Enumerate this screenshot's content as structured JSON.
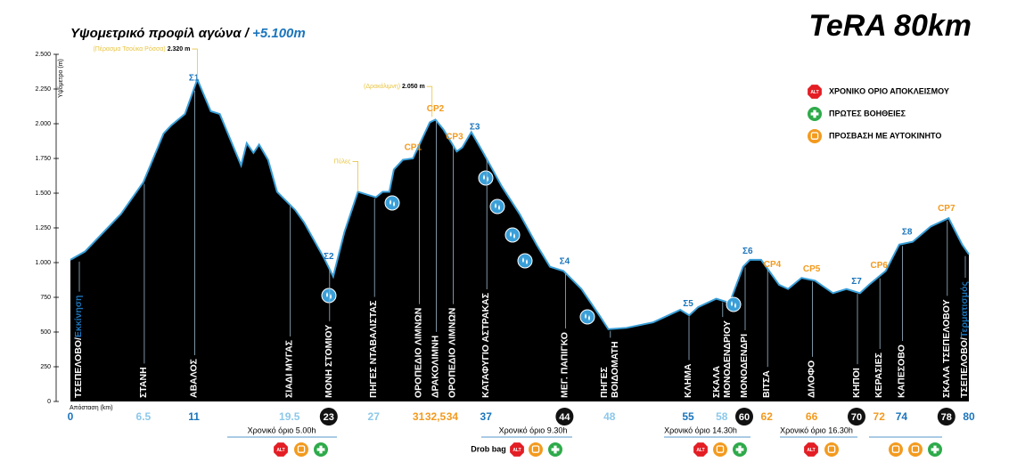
{
  "chart_data": {
    "type": "area",
    "title": "Υψομετρικό προφίλ αγώνα / ",
    "subtitle": "+5.100m",
    "brand": "TeRA 80km",
    "ylabel": "Υψόμετρο (m)",
    "xlabel": "Απόσταση (km)",
    "color": "#000000",
    "line_color": "#3a9fd8",
    "xlim": [
      0,
      80
    ],
    "ylim": [
      0,
      2500
    ],
    "yticks": [
      0,
      250,
      500,
      750,
      {
        "value": 1000,
        "label": "1.000"
      },
      {
        "value": 1250,
        "label": "1.250"
      },
      {
        "value": 1500,
        "label": "1.500"
      },
      {
        "value": 1750,
        "label": "1.750"
      },
      {
        "value": 2000,
        "label": "2.000"
      },
      {
        "value": 2250,
        "label": "2.250"
      },
      {
        "value": 2500,
        "label": "2.500"
      }
    ],
    "x": [
      0,
      1.3,
      4.5,
      6.5,
      8.3,
      9.0,
      10.2,
      11.3,
      12.5,
      13.3,
      15.2,
      15.7,
      16.3,
      16.8,
      17.6,
      18.4,
      20.0,
      20.8,
      22.6,
      23.4,
      24.4,
      25.6,
      27.2,
      27.8,
      28.4,
      28.8,
      29.6,
      30.5,
      32.0,
      32.5,
      33.2,
      34.4,
      34.9,
      35.7,
      36.7,
      38.4,
      40.0,
      41.5,
      42.7,
      43.9,
      45.5,
      47.1,
      47.9,
      49.5,
      51.9,
      54.3,
      55.1,
      55.9,
      57.5,
      58.7,
      59.9,
      60.5,
      61.5,
      63.1,
      63.9,
      65.1,
      66.3,
      67.9,
      69.1,
      70.3,
      71.1,
      72.6,
      73.8,
      75.0,
      76.6,
      78.2,
      79.4,
      80
    ],
    "values": [
      1020,
      1080,
      1350,
      1580,
      1930,
      1990,
      2070,
      2320,
      2090,
      2070,
      1700,
      1860,
      1790,
      1850,
      1740,
      1510,
      1380,
      1290,
      1030,
      900,
      1220,
      1510,
      1470,
      1510,
      1510,
      1670,
      1740,
      1750,
      2010,
      2030,
      1960,
      1800,
      1830,
      1940,
      1800,
      1550,
      1350,
      1130,
      970,
      940,
      810,
      620,
      520,
      530,
      570,
      660,
      620,
      680,
      740,
      710,
      970,
      1020,
      1020,
      840,
      810,
      890,
      870,
      780,
      810,
      780,
      840,
      940,
      1130,
      1150,
      1260,
      1320,
      1130,
      1060
    ],
    "stations": [
      {
        "name": [
          "ΤΣΕΠΕΛΟΒΟ/"
        ],
        "note": "Εκκίνηση",
        "km": 0,
        "color": "#1b75bc"
      },
      {
        "name": [
          "ΣΤΑΝΗ"
        ],
        "km": 6.5,
        "color": "#8cc8ea"
      },
      {
        "name": [
          "ΑΒΑΛΟΣ"
        ],
        "km": 11,
        "color": "#1b75bc"
      },
      {
        "name": [
          "ΣΙΑΔΙ ΜΥΓΑΣ"
        ],
        "km": 19.5,
        "color": "#8cc8ea"
      },
      {
        "name": [
          "ΜΟΝΗ ΣΤΟΜΙΟΥ"
        ],
        "km": 23,
        "color": "#111111",
        "style": "circle"
      },
      {
        "name": [
          "ΠΗΓΕΣ ΝΤΑΒΑΛΙΣΤΑΣ"
        ],
        "km": 27,
        "color": "#8cc8ea"
      },
      {
        "name": [
          "ΟΡΟΠΕΔΙΟ ΛΙΜΝΩΝ"
        ],
        "km": 31,
        "color": "#f39a1e"
      },
      {
        "name": [
          "ΔΡΑΚΟΛΙΜΝΗ"
        ],
        "km": {
          "value": 32.5,
          "label": "32,5"
        },
        "color": "#f39a1e"
      },
      {
        "name": [
          "ΟΡΟΠΕΔΙΟ ΛΙΜΝΩΝ"
        ],
        "km": 34,
        "color": "#f39a1e"
      },
      {
        "name": [
          "ΚΑΤΑΦΥΓΙΟ ΑΣΤΡΑΚΑΣ"
        ],
        "km": 37,
        "color": "#1b75bc"
      },
      {
        "name": [
          "ΜΕΓ. ΠΑΠΙΓΚΟ"
        ],
        "km": 44,
        "color": "#111111",
        "style": "circle"
      },
      {
        "name": [
          "ΠΗΓΕΣ",
          "ΒΟΙΔΟΜΑΤΗ"
        ],
        "km": 48,
        "color": "#8cc8ea"
      },
      {
        "name": [
          "ΚΛΗΜΑ"
        ],
        "km": 55,
        "color": "#1b75bc"
      },
      {
        "name": [
          "ΣΚΑΛΑ",
          "ΜΟΝΟΔΕΝΔΡΙΟΥ"
        ],
        "km": 58,
        "color": "#8cc8ea"
      },
      {
        "name": [
          "ΜΟΝΟΔΕΝΔΡΙ"
        ],
        "km": 60,
        "color": "#111111",
        "style": "circle"
      },
      {
        "name": [
          "ΒΙΤΣΑ"
        ],
        "km": 62,
        "color": "#f39a1e"
      },
      {
        "name": [
          "ΔΙΛΟΦΟ"
        ],
        "km": 66,
        "color": "#f39a1e"
      },
      {
        "name": [
          "ΚΗΠΟΙ"
        ],
        "km": 70,
        "color": "#111111",
        "style": "circle"
      },
      {
        "name": [
          "ΚΕΡΑΣΙΕΣ"
        ],
        "km": 72,
        "color": "#f39a1e"
      },
      {
        "name": [
          "ΚΑΠΕΣΟΒΟ"
        ],
        "km": 74,
        "color": "#1b75bc"
      },
      {
        "name": [
          "ΣΚΑΛΑ ΤΣΕΠΕΛΟΒΟΥ"
        ],
        "km": 78,
        "color": "#111111",
        "style": "circle"
      },
      {
        "name": [
          "ΤΣΕΠΕΛΟΒΟ/"
        ],
        "note": "Τερματισμός",
        "km": 80,
        "color": "#1b75bc"
      }
    ],
    "checkpoints": [
      {
        "label": "Σ1",
        "km": 11,
        "color": "#1b75bc"
      },
      {
        "label": "Σ2",
        "km": 23,
        "color": "#1b75bc"
      },
      {
        "label": "CP1",
        "km": 30.5,
        "color": "#f39a1e"
      },
      {
        "label": "CP2",
        "km": 32.5,
        "color": "#f39a1e"
      },
      {
        "label": "CP3",
        "km": 34.2,
        "color": "#f39a1e"
      },
      {
        "label": "Σ3",
        "km": 36,
        "color": "#1b75bc"
      },
      {
        "label": "Σ4",
        "km": 44,
        "color": "#1b75bc"
      },
      {
        "label": "Σ5",
        "km": 55,
        "color": "#1b75bc"
      },
      {
        "label": "Σ6",
        "km": 60.3,
        "color": "#1b75bc"
      },
      {
        "label": "CP4",
        "km": 62.5,
        "color": "#f39a1e"
      },
      {
        "label": "CP5",
        "km": 66,
        "color": "#f39a1e"
      },
      {
        "label": "Σ7",
        "km": 70,
        "color": "#1b75bc"
      },
      {
        "label": "CP6",
        "km": 72,
        "color": "#f39a1e"
      },
      {
        "label": "Σ8",
        "km": 74.5,
        "color": "#1b75bc"
      },
      {
        "label": "CP7",
        "km": 78,
        "color": "#f39a1e"
      }
    ],
    "peaks": [
      {
        "name": "(Πέρασμα Τσούκα Ρόσσα)",
        "elevation": {
          "value": 2320,
          "label": "2.320 m"
        },
        "km": 11.3
      },
      {
        "name": "(Δρακόλιμνη)",
        "elevation": {
          "value": 2050,
          "label": "2.050 m"
        },
        "km": 32.2
      },
      {
        "name": "Πύλες",
        "km": 25.6
      }
    ],
    "time_limits": [
      {
        "label": "Χρονικό όριο 5.00h"
      },
      {
        "label": "Χρονικό όριο 9.30h",
        "extra": "Drob bag"
      },
      {
        "label": "Χρονικό όριο 14.30h"
      },
      {
        "label": "Χρονικό όριο 16.30h"
      }
    ],
    "legend": [
      {
        "icon": "ALT",
        "label": "ΧΡΟΝΙΚΟ ΟΡΙΟ ΑΠΟΚΛΕΙΣΜΟΥ",
        "color": "#e31e24"
      },
      {
        "label": "ΠΡΩΤΕΣ ΒΟΗΘΕΙΕΣ",
        "color": "#2eaa4a"
      },
      {
        "label": "ΠΡΟΣΒΑΣΗ ΜΕ ΑΥΤΟΚΙΝΗΤΟ",
        "color": "#f39a1e"
      }
    ]
  }
}
